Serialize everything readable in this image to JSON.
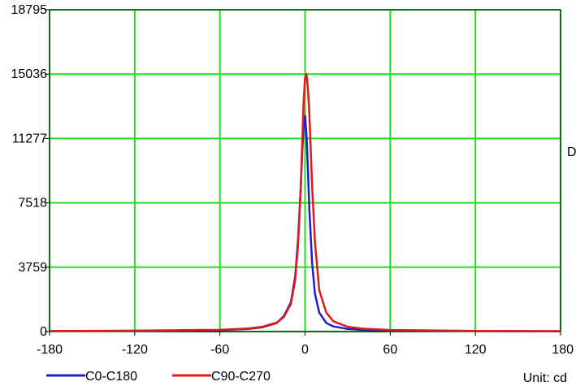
{
  "chart_data": {
    "type": "line",
    "xlim": [
      -180,
      180
    ],
    "ylim": [
      0,
      18795
    ],
    "x_ticks": [
      "-180",
      "-120",
      "-60",
      "0",
      "60",
      "120",
      "180"
    ],
    "y_ticks": [
      "0",
      "3759",
      "7518",
      "11277",
      "15036",
      "18795"
    ],
    "grid": true,
    "grid_color": "#22dd22",
    "unit_label": "Unit: cd",
    "clipped_text": "D",
    "legend_position": "bottom-left",
    "series": [
      {
        "name": "C0-C180",
        "color": "#1f1fc8",
        "x": [
          -180,
          -120,
          -60,
          -40,
          -30,
          -20,
          -15,
          -10,
          -7,
          -5,
          -3,
          -2,
          -1,
          0,
          1,
          2,
          3,
          5,
          7,
          10,
          15,
          20,
          30,
          40,
          60,
          120,
          180
        ],
        "y": [
          30,
          40,
          80,
          150,
          250,
          500,
          900,
          1700,
          3200,
          5300,
          8500,
          10500,
          12000,
          12600,
          11500,
          9500,
          7200,
          4000,
          2200,
          1100,
          500,
          300,
          150,
          100,
          60,
          30,
          20
        ]
      },
      {
        "name": "C90-C270",
        "color": "#e01a1a",
        "x": [
          -180,
          -120,
          -60,
          -40,
          -30,
          -20,
          -15,
          -10,
          -7,
          -5,
          -3,
          -2,
          -1,
          0,
          1,
          2,
          3,
          5,
          7,
          10,
          15,
          20,
          30,
          40,
          60,
          120,
          180
        ],
        "y": [
          30,
          50,
          100,
          180,
          280,
          520,
          850,
          1600,
          3000,
          5000,
          8500,
          11000,
          13500,
          14800,
          15050,
          14200,
          12800,
          8500,
          5200,
          2400,
          1100,
          600,
          280,
          170,
          90,
          40,
          25
        ]
      }
    ]
  }
}
